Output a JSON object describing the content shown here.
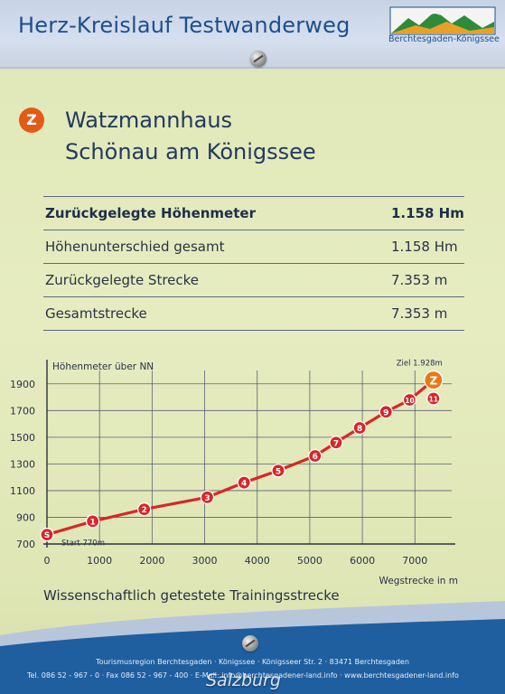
{
  "header": {
    "title": "Herz-Kreislauf Testwanderweg",
    "logo_caption": "Berchtesgaden-Königssee"
  },
  "destination": {
    "badge": "Z",
    "line1": "Watzmannhaus",
    "line2": "Schönau am Königssee"
  },
  "stats": [
    {
      "label": "Zurückgelegte Höhenmeter",
      "value": "1.158 Hm"
    },
    {
      "label": "Höhenunterschied gesamt",
      "value": "1.158 Hm"
    },
    {
      "label": "Zurückgelegte Strecke",
      "value": "7.353 m"
    },
    {
      "label": "Gesamtstrecke",
      "value": "7.353 m"
    }
  ],
  "chart": {
    "ylabel": "Höhenmeter über NN",
    "xlabel": "Wegstrecke in m",
    "start_label": "Start 770m",
    "goal_label": "Ziel 1.928m",
    "y_ticks": [
      "700",
      "900",
      "1100",
      "1300",
      "1500",
      "1700",
      "1900"
    ],
    "x_ticks": [
      "0",
      "1000",
      "2000",
      "3000",
      "4000",
      "5000",
      "6000",
      "7000"
    ]
  },
  "chart_data": {
    "type": "line",
    "title": "",
    "xlabel": "Wegstrecke in m",
    "ylabel": "Höhenmeter über NN",
    "xlim": [
      0,
      7700
    ],
    "ylim": [
      700,
      2000
    ],
    "grid": true,
    "points": [
      {
        "label": "S",
        "x": 0,
        "y": 770
      },
      {
        "label": "1",
        "x": 870,
        "y": 870
      },
      {
        "label": "2",
        "x": 1850,
        "y": 960
      },
      {
        "label": "3",
        "x": 3050,
        "y": 1050
      },
      {
        "label": "4",
        "x": 3750,
        "y": 1160
      },
      {
        "label": "5",
        "x": 4400,
        "y": 1250
      },
      {
        "label": "6",
        "x": 5100,
        "y": 1360
      },
      {
        "label": "7",
        "x": 5500,
        "y": 1460
      },
      {
        "label": "8",
        "x": 5950,
        "y": 1570
      },
      {
        "label": "9",
        "x": 6450,
        "y": 1690
      },
      {
        "label": "10",
        "x": 6900,
        "y": 1780
      },
      {
        "label": "11",
        "x": 7353,
        "y": 1790
      },
      {
        "label": "Z",
        "x": 7353,
        "y": 1928
      }
    ],
    "line_path_labels": [
      "S",
      "1",
      "2",
      "3",
      "4",
      "5",
      "6",
      "7",
      "8",
      "9",
      "10",
      "Z"
    ]
  },
  "footer": {
    "caption": "Wissenschaftlich getestete Trainingsstrecke",
    "address": "Tourismusregion Berchtesgaden · Königssee · Königsseer Str. 2 · 83471 Berchtesgaden",
    "contact": "Tel. 086 52 - 967 - 0 · Fax 086 52 - 967 - 400 · E-Mail: info@berchtesgadener-land.info · www.berchtesgadener-land.info",
    "watermark": "Salzburg"
  },
  "colors": {
    "route": "#d8262a",
    "goal": "#e8791a",
    "text_blue": "#1d4f8d"
  }
}
